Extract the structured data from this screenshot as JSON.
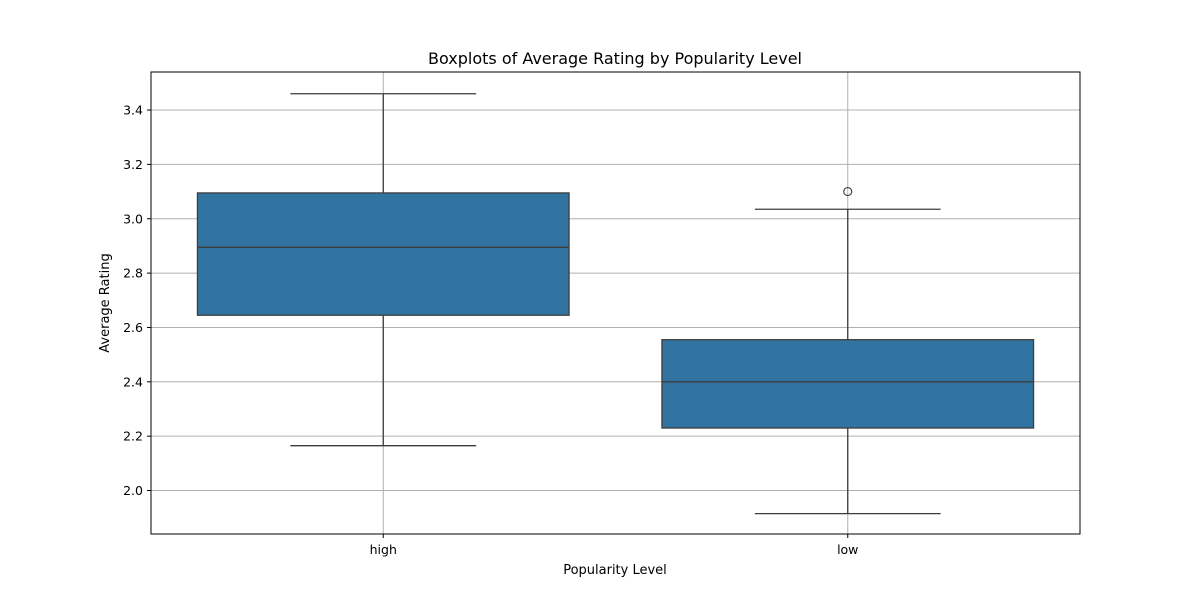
{
  "chart_data": {
    "type": "boxplot",
    "title": "Boxplots of Average Rating by Popularity Level",
    "xlabel": "Popularity Level",
    "ylabel": "Average Rating",
    "categories": [
      "high",
      "low"
    ],
    "ylim": [
      1.84,
      3.54
    ],
    "yticks": [
      2.0,
      2.2,
      2.4,
      2.6,
      2.8,
      3.0,
      3.2,
      3.4
    ],
    "ytick_labels": [
      "2.0",
      "2.2",
      "2.4",
      "2.6",
      "2.8",
      "3.0",
      "3.2",
      "3.4"
    ],
    "grid": true,
    "box_color": "#3274a1",
    "line_color": "#3d3d3d",
    "boxes": [
      {
        "category": "high",
        "whisker_low": 2.165,
        "q1": 2.645,
        "median": 2.895,
        "q3": 3.095,
        "whisker_high": 3.46,
        "outliers": []
      },
      {
        "category": "low",
        "whisker_low": 1.915,
        "q1": 2.23,
        "median": 2.4,
        "q3": 2.555,
        "whisker_high": 3.035,
        "outliers": [
          3.1
        ]
      }
    ]
  }
}
